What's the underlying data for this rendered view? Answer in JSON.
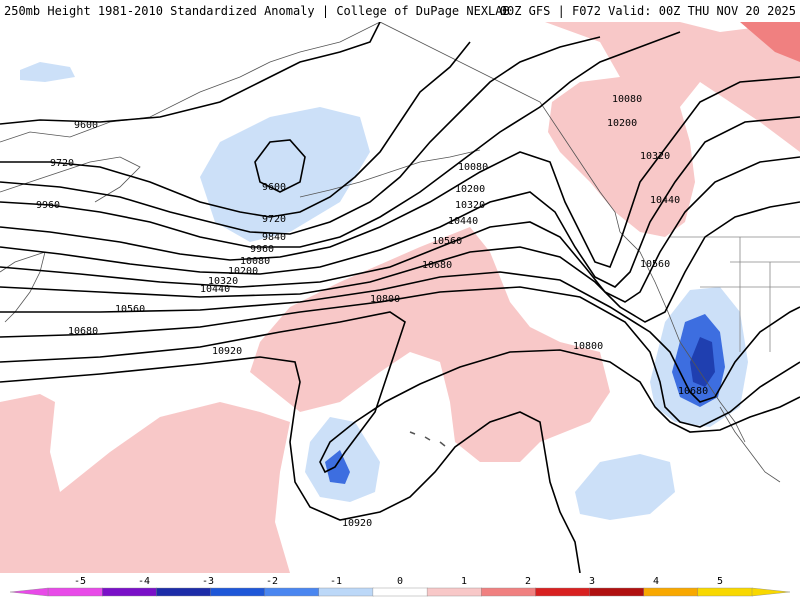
{
  "header": {
    "title_left": "250mb Height 1981-2010 Standardized Anomaly | College of DuPage NEXLAB",
    "title_right": "00Z GFS | F072 Valid: 00Z THU NOV 20 2025"
  },
  "map": {
    "field": "250mb geopotential height (m)",
    "contour_labels": [
      "9600",
      "9600",
      "9720",
      "9720",
      "9840",
      "9960",
      "9960",
      "10080",
      "10080",
      "10080",
      "10200",
      "10200",
      "10200",
      "10320",
      "10320",
      "10320",
      "10440",
      "10440",
      "10440",
      "10560",
      "10560",
      "10560",
      "10680",
      "10680",
      "10680",
      "10800",
      "10800",
      "10920",
      "10920"
    ],
    "colors": {
      "strong_pos": "#f8c8c8",
      "weak_neg": "#cce0f8",
      "mid_neg": "#3d6ee0",
      "deep_neg": "#1f3fb0",
      "land_lines": "#555555",
      "contour": "#000000"
    }
  },
  "legend": {
    "ticks": [
      "-5",
      "-4",
      "-3",
      "-2",
      "-1",
      "0",
      "1",
      "2",
      "3",
      "4",
      "5"
    ],
    "colors": [
      "#e84ae8",
      "#7a10c8",
      "#1c2ca8",
      "#1e57d8",
      "#4a86f0",
      "#bcd8f8",
      "#ffffff",
      "#f8c8c8",
      "#f08080",
      "#d82020",
      "#b01010",
      "#f8a800",
      "#f8d800"
    ]
  }
}
